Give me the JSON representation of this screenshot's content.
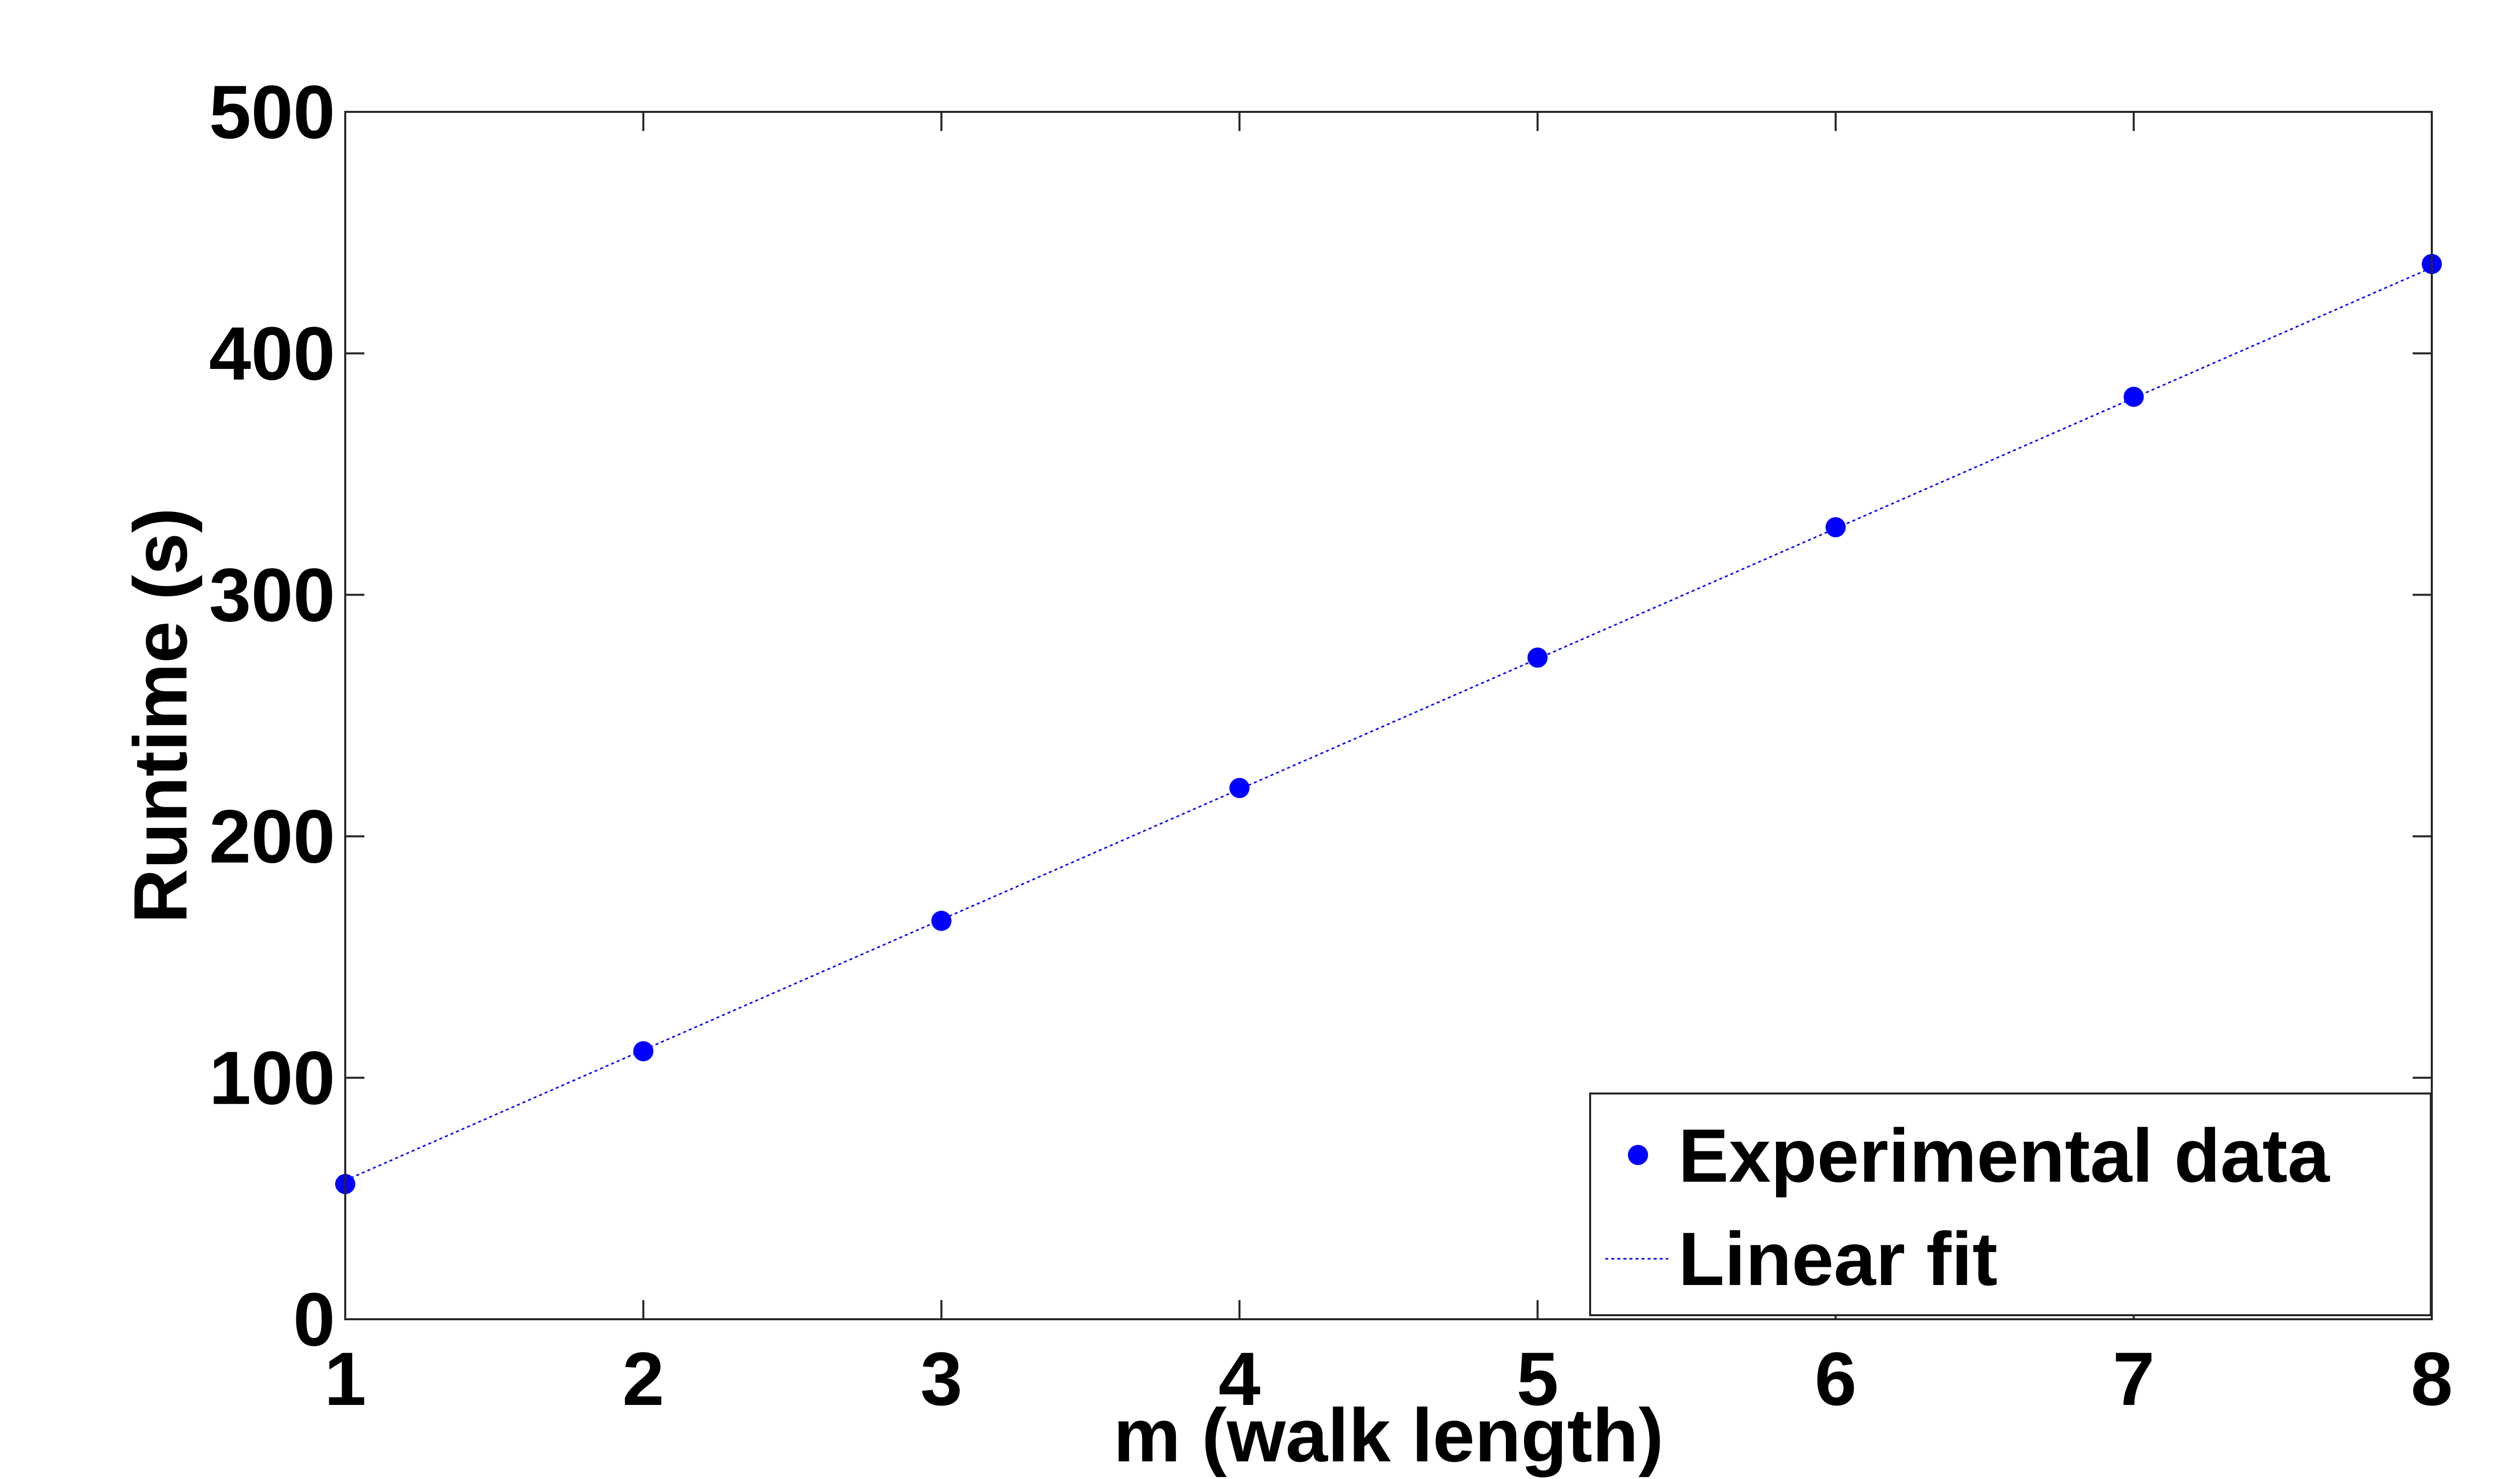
{
  "chart_data": {
    "type": "scatter",
    "xlabel": "m (walk length)",
    "ylabel": "Runtime (s)",
    "xlim": [
      1,
      8
    ],
    "ylim": [
      0,
      500
    ],
    "xticks": [
      "1",
      "2",
      "3",
      "4",
      "5",
      "6",
      "7",
      "8"
    ],
    "yticks": [
      "0",
      "100",
      "200",
      "300",
      "400",
      "500"
    ],
    "grid": false,
    "legend_position": "bottom-right",
    "series": [
      {
        "name": "Experimental data",
        "marker": "filled-circle",
        "color": "#0000ff",
        "x": [
          1,
          2,
          3,
          4,
          5,
          6,
          7,
          8
        ],
        "y": [
          56,
          111,
          165,
          220,
          274,
          328,
          382,
          437
        ]
      },
      {
        "name": "Linear fit",
        "style": "dotted-line",
        "color": "#0000ff",
        "x": [
          1,
          8
        ],
        "y": [
          57.5,
          435.5
        ]
      }
    ]
  }
}
